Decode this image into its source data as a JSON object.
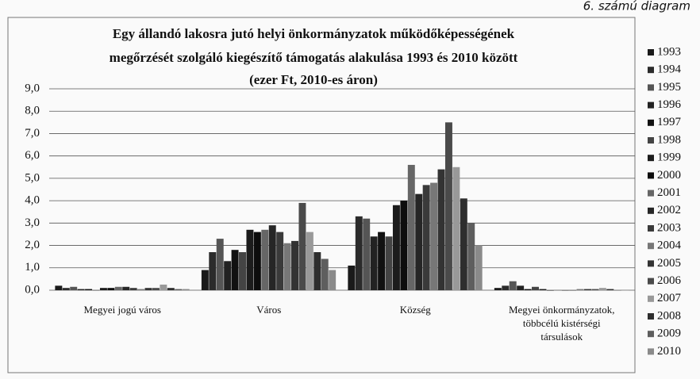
{
  "chart_data": {
    "type": "bar",
    "caption": "6. számú diagram",
    "title": [
      "Egy állandó lakosra jutó helyi önkormányzatok működőképességének",
      "megőrzését szolgáló kiegészítő támogatás alakulása 1993 és 2010 között",
      "(ezer Ft, 2010-es áron)"
    ],
    "categories": [
      "Megyei jogú város",
      "Város",
      "Község",
      "Megyei önkormányzatok, többcélú kistérségi társulások"
    ],
    "ylim": [
      0,
      9
    ],
    "yticks": [
      {
        "value": 0,
        "label": "0,0"
      },
      {
        "value": 1,
        "label": "1,0"
      },
      {
        "value": 2,
        "label": "2,0"
      },
      {
        "value": 3,
        "label": "3,0"
      },
      {
        "value": 4,
        "label": "4,0"
      },
      {
        "value": 5,
        "label": "5,0"
      },
      {
        "value": 6,
        "label": "6,0"
      },
      {
        "value": 7,
        "label": "7,0"
      },
      {
        "value": 8,
        "label": "8,0"
      },
      {
        "value": 9,
        "label": "9,0"
      }
    ],
    "grid": true,
    "legend": "right",
    "series": [
      {
        "name": "1993",
        "color": "#1a1a1a",
        "values": [
          0.2,
          0.9,
          1.1,
          0.1
        ]
      },
      {
        "name": "1994",
        "color": "#2b2b2b",
        "values": [
          0.1,
          1.7,
          3.3,
          0.2
        ]
      },
      {
        "name": "1995",
        "color": "#555555",
        "values": [
          0.15,
          2.3,
          3.2,
          0.4
        ]
      },
      {
        "name": "1996",
        "color": "#222222",
        "values": [
          0.05,
          1.3,
          2.4,
          0.2
        ]
      },
      {
        "name": "1997",
        "color": "#111111",
        "values": [
          0.05,
          1.8,
          2.6,
          0.05
        ]
      },
      {
        "name": "1998",
        "color": "#444444",
        "values": [
          0,
          1.7,
          2.4,
          0.15
        ]
      },
      {
        "name": "1999",
        "color": "#1c1c1c",
        "values": [
          0.1,
          2.7,
          3.8,
          0.05
        ]
      },
      {
        "name": "2000",
        "color": "#0d0d0d",
        "values": [
          0.1,
          2.6,
          4.0,
          0
        ]
      },
      {
        "name": "2001",
        "color": "#666666",
        "values": [
          0.15,
          2.7,
          5.6,
          0
        ]
      },
      {
        "name": "2002",
        "color": "#262626",
        "values": [
          0.15,
          2.9,
          4.3,
          0
        ]
      },
      {
        "name": "2003",
        "color": "#3a3a3a",
        "values": [
          0.1,
          2.6,
          4.7,
          0
        ]
      },
      {
        "name": "2004",
        "color": "#777777",
        "values": [
          0.05,
          2.1,
          4.8,
          0.05
        ]
      },
      {
        "name": "2005",
        "color": "#333333",
        "values": [
          0.1,
          2.2,
          5.4,
          0.05
        ]
      },
      {
        "name": "2006",
        "color": "#4a4a4a",
        "values": [
          0.1,
          3.9,
          7.5,
          0.05
        ]
      },
      {
        "name": "2007",
        "color": "#999999",
        "values": [
          0.25,
          2.6,
          5.5,
          0.1
        ]
      },
      {
        "name": "2008",
        "color": "#2e2e2e",
        "values": [
          0.1,
          1.7,
          4.1,
          0.05
        ]
      },
      {
        "name": "2009",
        "color": "#5e5e5e",
        "values": [
          0.05,
          1.4,
          3.0,
          0
        ]
      },
      {
        "name": "2010",
        "color": "#8a8a8a",
        "values": [
          0.05,
          0.9,
          2.0,
          0
        ]
      }
    ]
  }
}
